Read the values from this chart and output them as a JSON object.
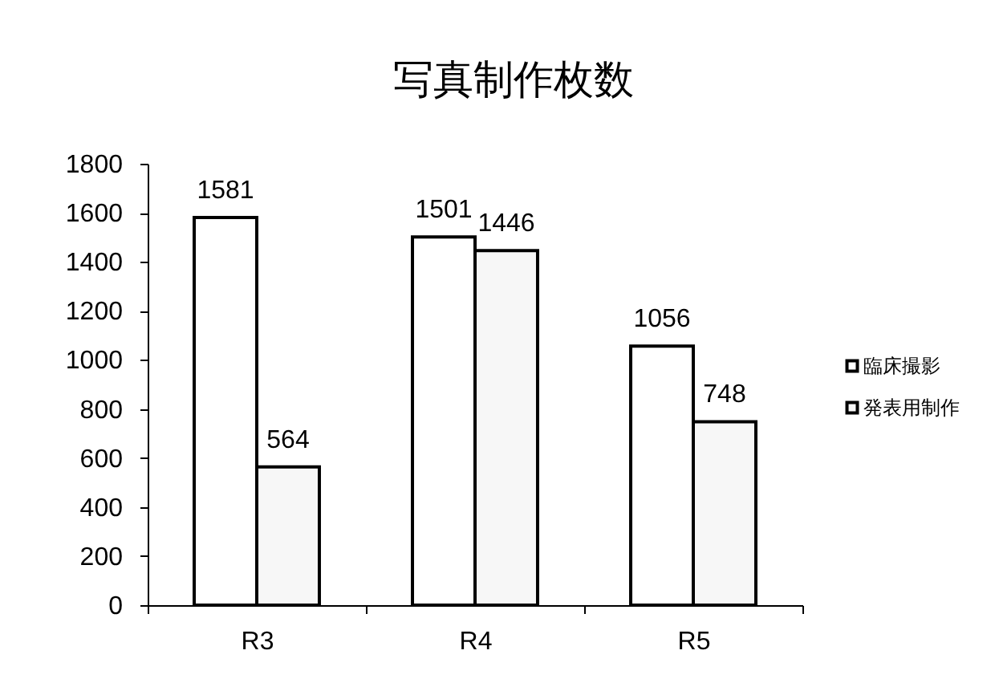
{
  "chart_data": {
    "type": "bar",
    "title": "写真制作枚数",
    "categories": [
      "R3",
      "R4",
      "R5"
    ],
    "series": [
      {
        "name": "臨床撮影",
        "color": "#ffffff",
        "values": [
          1581,
          1501,
          1056
        ]
      },
      {
        "name": "発表用制作",
        "color": "#f7f7f7",
        "values": [
          564,
          1446,
          748
        ]
      }
    ],
    "ylim": [
      0,
      1800
    ],
    "yticks": [
      0,
      200,
      400,
      600,
      800,
      1000,
      1200,
      1400,
      1600,
      1800
    ],
    "data_labels": true,
    "legend": "right",
    "grid": false
  }
}
